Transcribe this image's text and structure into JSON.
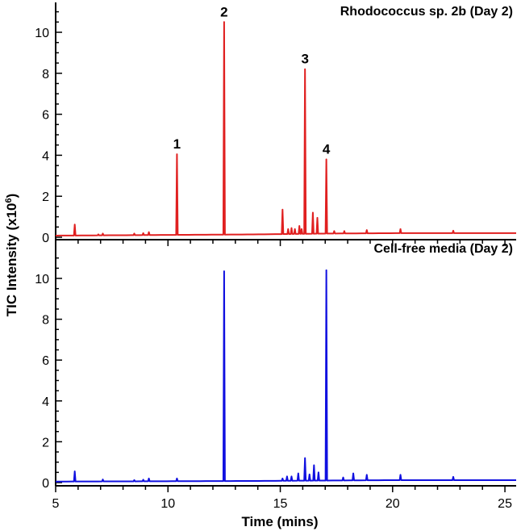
{
  "chart_data": [
    {
      "type": "line",
      "title": "Rhodococcus sp. 2b (Day 2)",
      "ylabel": "TIC Intensity (x10",
      "ylabel_exp": "6",
      "ylabel_close": ")",
      "ylim": [
        0,
        11
      ],
      "yticks": [
        0,
        2,
        4,
        6,
        8,
        10
      ],
      "xlim": [
        5,
        25.5
      ],
      "color": "#e02020",
      "baseline": [
        {
          "x": 5.0,
          "y": 0.08
        },
        {
          "x": 8.0,
          "y": 0.1
        },
        {
          "x": 11.0,
          "y": 0.12
        },
        {
          "x": 14.0,
          "y": 0.14
        },
        {
          "x": 17.0,
          "y": 0.18
        },
        {
          "x": 20.0,
          "y": 0.2
        },
        {
          "x": 23.0,
          "y": 0.2
        },
        {
          "x": 25.5,
          "y": 0.2
        }
      ],
      "peaks": [
        {
          "x": 5.85,
          "y": 0.62
        },
        {
          "x": 6.9,
          "y": 0.14
        },
        {
          "x": 7.1,
          "y": 0.18
        },
        {
          "x": 8.5,
          "y": 0.18
        },
        {
          "x": 8.9,
          "y": 0.2
        },
        {
          "x": 9.15,
          "y": 0.25
        },
        {
          "x": 10.4,
          "y": 4.05
        },
        {
          "x": 12.5,
          "y": 10.5
        },
        {
          "x": 15.1,
          "y": 1.35
        },
        {
          "x": 15.35,
          "y": 0.4
        },
        {
          "x": 15.5,
          "y": 0.45
        },
        {
          "x": 15.65,
          "y": 0.4
        },
        {
          "x": 15.85,
          "y": 0.55
        },
        {
          "x": 15.95,
          "y": 0.4
        },
        {
          "x": 16.1,
          "y": 8.2
        },
        {
          "x": 16.45,
          "y": 1.2
        },
        {
          "x": 16.65,
          "y": 0.95
        },
        {
          "x": 17.05,
          "y": 3.8
        },
        {
          "x": 17.4,
          "y": 0.3
        },
        {
          "x": 17.85,
          "y": 0.3
        },
        {
          "x": 18.85,
          "y": 0.35
        },
        {
          "x": 20.35,
          "y": 0.4
        },
        {
          "x": 22.7,
          "y": 0.32
        }
      ],
      "annotations": [
        {
          "text": "1",
          "x": 10.4,
          "y": 4.05
        },
        {
          "text": "2",
          "x": 12.5,
          "y": 10.5
        },
        {
          "text": "3",
          "x": 16.1,
          "y": 8.2
        },
        {
          "text": "4",
          "x": 17.05,
          "y": 3.8
        }
      ]
    },
    {
      "type": "line",
      "title": "Cell-free media (Day 2)",
      "xlabel": "Time (mins)",
      "xticks": [
        5,
        10,
        15,
        20,
        25
      ],
      "xlim": [
        5,
        25.5
      ],
      "ylim": [
        0,
        11
      ],
      "yticks": [
        0,
        2,
        4,
        6,
        8,
        10
      ],
      "color": "#1010e0",
      "baseline": [
        {
          "x": 5.0,
          "y": 0.05
        },
        {
          "x": 8.0,
          "y": 0.06
        },
        {
          "x": 11.0,
          "y": 0.07
        },
        {
          "x": 14.0,
          "y": 0.08
        },
        {
          "x": 17.0,
          "y": 0.1
        },
        {
          "x": 20.0,
          "y": 0.12
        },
        {
          "x": 23.0,
          "y": 0.12
        },
        {
          "x": 25.5,
          "y": 0.12
        }
      ],
      "peaks": [
        {
          "x": 5.85,
          "y": 0.55
        },
        {
          "x": 7.1,
          "y": 0.15
        },
        {
          "x": 8.5,
          "y": 0.12
        },
        {
          "x": 8.9,
          "y": 0.14
        },
        {
          "x": 9.15,
          "y": 0.2
        },
        {
          "x": 10.4,
          "y": 0.2
        },
        {
          "x": 12.5,
          "y": 10.35
        },
        {
          "x": 15.1,
          "y": 0.2
        },
        {
          "x": 15.3,
          "y": 0.3
        },
        {
          "x": 15.5,
          "y": 0.3
        },
        {
          "x": 15.8,
          "y": 0.45
        },
        {
          "x": 16.1,
          "y": 1.2
        },
        {
          "x": 16.3,
          "y": 0.4
        },
        {
          "x": 16.5,
          "y": 0.85
        },
        {
          "x": 16.7,
          "y": 0.5
        },
        {
          "x": 17.05,
          "y": 10.4
        },
        {
          "x": 17.8,
          "y": 0.25
        },
        {
          "x": 18.25,
          "y": 0.45
        },
        {
          "x": 18.85,
          "y": 0.38
        },
        {
          "x": 20.35,
          "y": 0.38
        },
        {
          "x": 22.7,
          "y": 0.28
        }
      ],
      "annotations": []
    }
  ]
}
